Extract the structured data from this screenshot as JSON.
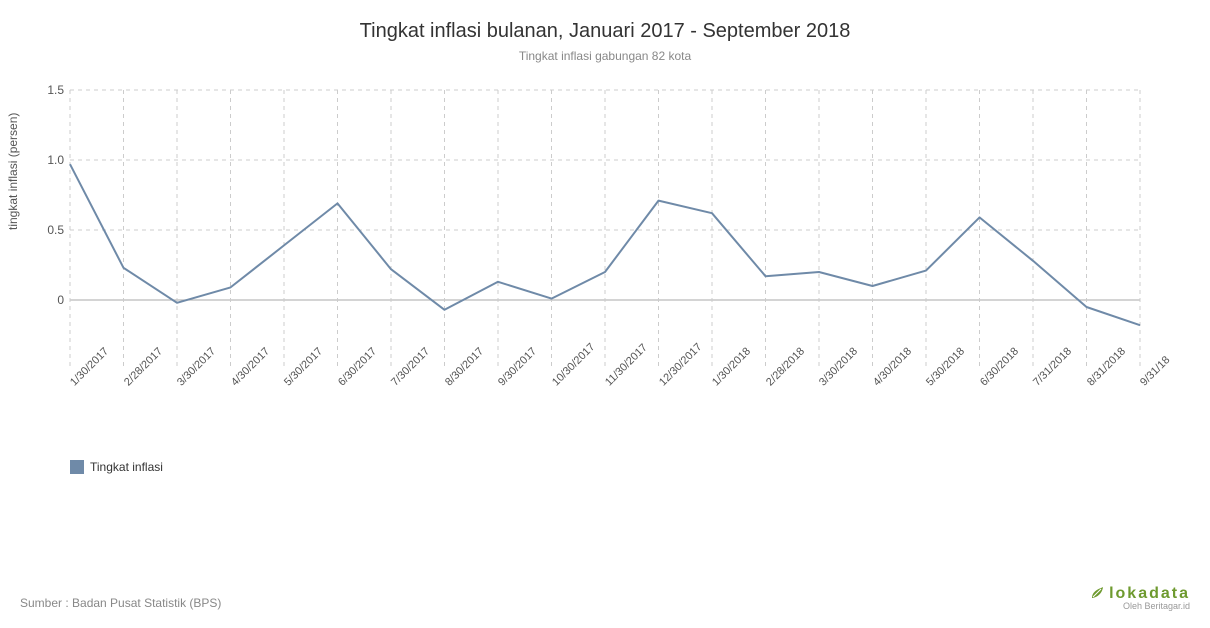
{
  "chart": {
    "type": "line",
    "title": "Tingkat inflasi bulanan, Januari 2017 - September 2018",
    "subtitle": "Tingkat inflasi gabungan 82 kota",
    "y_axis_label": "tingkat inflasi (persen)",
    "series_name": "Tingkat inflasi",
    "line_color": "#6f8aa8",
    "line_width": 2,
    "grid_color": "#cccccc",
    "zero_line_color": "#bbbbbb",
    "background_color": "#ffffff",
    "title_fontsize": 20,
    "subtitle_fontsize": 12,
    "label_fontsize": 12,
    "tick_fontsize": 11,
    "ylim": [
      -0.5,
      1.5
    ],
    "yticks": [
      0,
      0.5,
      1.0,
      1.5
    ],
    "categories": [
      "1/30/2017",
      "2/28/2017",
      "3/30/2017",
      "4/30/2017",
      "5/30/2017",
      "6/30/2017",
      "7/30/2017",
      "8/30/2017",
      "9/30/2017",
      "10/30/2017",
      "11/30/2017",
      "12/30/2017",
      "1/30/2018",
      "2/28/2018",
      "3/30/2018",
      "4/30/2018",
      "5/30/2018",
      "6/30/2018",
      "7/31/2018",
      "8/31/2018",
      "9/31/18"
    ],
    "values": [
      0.97,
      0.23,
      -0.02,
      0.09,
      0.39,
      0.69,
      0.22,
      -0.07,
      0.13,
      0.01,
      0.2,
      0.71,
      0.62,
      0.17,
      0.2,
      0.1,
      0.21,
      0.59,
      0.28,
      -0.05,
      -0.18
    ]
  },
  "legend": {
    "label": "Tingkat inflasi"
  },
  "footer": {
    "source": "Sumber : Badan Pusat Statistik (BPS)"
  },
  "brand": {
    "name": "lokadata",
    "sub": "Oleh Beritagar.id",
    "color": "#6e9a2f"
  }
}
